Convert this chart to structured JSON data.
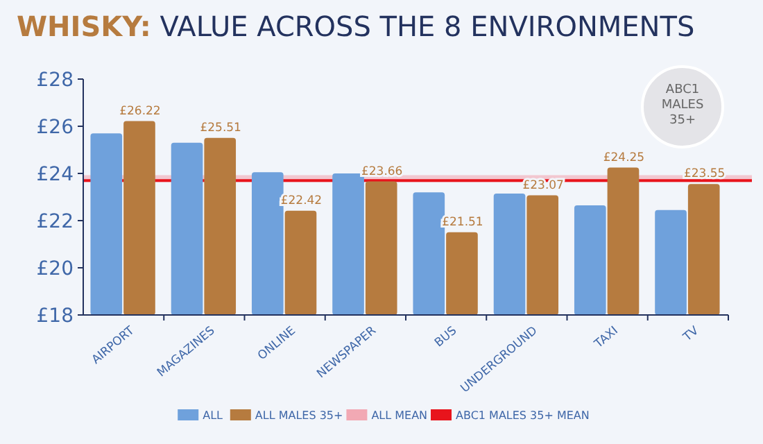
{
  "chart_data": {
    "type": "bar",
    "title": "WHISKY: VALUE ACROSS THE 8 ENVIRONMENTS",
    "categories": [
      "AIRPORT",
      "MAGAZINES",
      "ONLINE",
      "NEWSPAPER",
      "BUS",
      "UNDERGROUND",
      "TAXI",
      "TV"
    ],
    "series": [
      {
        "name": "ALL",
        "color": "#6fa1dc",
        "values": [
          25.7,
          25.3,
          24.05,
          24.0,
          23.2,
          23.15,
          22.65,
          22.45
        ]
      },
      {
        "name": "ALL MALES 35+",
        "color": "#b67b3f",
        "values": [
          26.22,
          25.51,
          22.42,
          23.66,
          21.51,
          23.07,
          24.25,
          23.55
        ],
        "value_labels": [
          "£26.22",
          "£25.51",
          "£22.42",
          "£23.66",
          "£21.51",
          "£23.07",
          "£24.25",
          "£23.55"
        ]
      }
    ],
    "ref_lines": [
      {
        "axis": "y",
        "value": 23.78,
        "label": "ALL MEAN",
        "color": "#f2a9b4"
      },
      {
        "axis": "y",
        "value": 23.7,
        "label": "ABC1 MALES 35+ MEAN",
        "color": "#e8141c"
      }
    ],
    "annotations": [
      "ABC1 MALES 35+"
    ],
    "ylim": [
      18,
      28
    ],
    "yticks": [
      {
        "value": 18,
        "label": "£18"
      },
      {
        "value": 20,
        "label": "£20"
      },
      {
        "value": 22,
        "label": "£22"
      },
      {
        "value": 24,
        "label": "£24"
      },
      {
        "value": 26,
        "label": "£26"
      },
      {
        "value": 28,
        "label": "£28"
      }
    ],
    "legend": "bottom",
    "grid": false
  }
}
